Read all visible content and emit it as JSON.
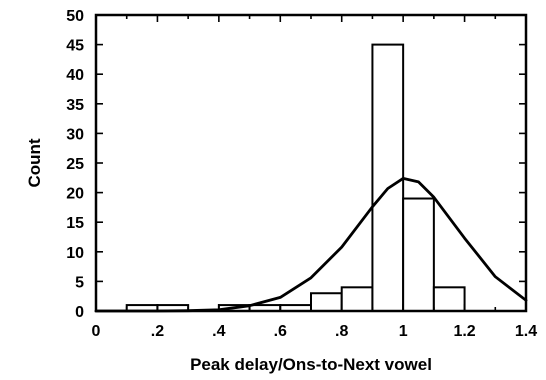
{
  "chart_data": {
    "type": "bar",
    "subtype": "histogram-with-density-curve",
    "xlabel": "Peak delay/Ons-to-Next vowel",
    "ylabel": "Count",
    "xlim": [
      0,
      1.4
    ],
    "ylim": [
      0,
      50
    ],
    "x_tick_labels": [
      "0",
      ".2",
      ".4",
      ".6",
      ".8",
      "1",
      "1.2",
      "1.4"
    ],
    "y_tick_labels": [
      "0",
      "5",
      "10",
      "15",
      "20",
      "25",
      "30",
      "35",
      "40",
      "45",
      "50"
    ],
    "bin_width": 0.1,
    "bins": [
      {
        "start": 0.1,
        "end": 0.2,
        "count": 1
      },
      {
        "start": 0.2,
        "end": 0.3,
        "count": 1
      },
      {
        "start": 0.3,
        "end": 0.4,
        "count": 0
      },
      {
        "start": 0.4,
        "end": 0.5,
        "count": 1
      },
      {
        "start": 0.5,
        "end": 0.6,
        "count": 1
      },
      {
        "start": 0.6,
        "end": 0.7,
        "count": 1
      },
      {
        "start": 0.7,
        "end": 0.8,
        "count": 3
      },
      {
        "start": 0.8,
        "end": 0.9,
        "count": 4
      },
      {
        "start": 0.9,
        "end": 1.0,
        "count": 45
      },
      {
        "start": 1.0,
        "end": 1.1,
        "count": 19
      },
      {
        "start": 1.1,
        "end": 1.2,
        "count": 4
      }
    ],
    "curve": {
      "x": [
        0.0,
        0.1,
        0.2,
        0.3,
        0.4,
        0.5,
        0.6,
        0.7,
        0.8,
        0.9,
        0.95,
        1.0,
        1.05,
        1.1,
        1.2,
        1.3,
        1.4
      ],
      "y": [
        0.0,
        0.0,
        0.0,
        0.05,
        0.2,
        0.9,
        2.3,
        5.6,
        10.8,
        17.6,
        20.7,
        22.4,
        21.8,
        19.2,
        12.3,
        5.8,
        1.8
      ]
    },
    "grid": false,
    "legend": "none"
  }
}
